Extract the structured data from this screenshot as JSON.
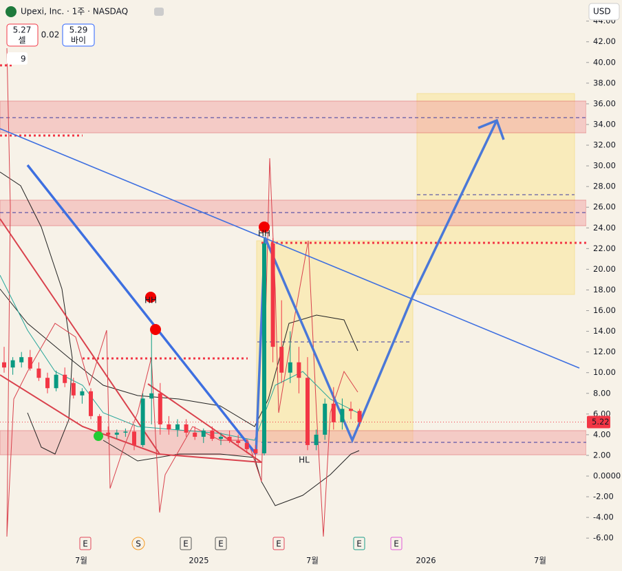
{
  "header": {
    "title": "Upexi, Inc. · 1주 · NASDAQ",
    "sell_price": "5.27",
    "sell_label": "셀",
    "spread": "0.02",
    "buy_price": "5.29",
    "buy_label": "바이",
    "indicator_count": "9",
    "currency": "USD"
  },
  "chart_data": {
    "type": "candlestick",
    "candles": [
      [
        11,
        12.5,
        10,
        10.5
      ],
      [
        10.5,
        11.5,
        9.8,
        11.2
      ],
      [
        11,
        12,
        10.5,
        11.5
      ],
      [
        11.5,
        12.2,
        10.2,
        10.4
      ],
      [
        10.4,
        11,
        9.2,
        9.5
      ],
      [
        9.5,
        10,
        8,
        8.5
      ],
      [
        8.5,
        10.2,
        8.2,
        9.8
      ],
      [
        9.8,
        10.5,
        8.6,
        9
      ],
      [
        9,
        9.5,
        7.5,
        7.8
      ],
      [
        7.8,
        8.5,
        7,
        8.2
      ],
      [
        8.2,
        8.5,
        5.5,
        5.8
      ],
      [
        5.8,
        6,
        3.8,
        4.2
      ],
      [
        4.2,
        4.8,
        3.6,
        4
      ],
      [
        4,
        4.5,
        3.6,
        4.2
      ],
      [
        4.2,
        4.6,
        3.8,
        4.3
      ],
      [
        4.3,
        5,
        2.5,
        3
      ],
      [
        3,
        8,
        2.8,
        7.5
      ],
      [
        7.5,
        14,
        5,
        8
      ],
      [
        8,
        9,
        4,
        5
      ],
      [
        5,
        5.8,
        4,
        4.5
      ],
      [
        4.5,
        5.5,
        3.8,
        5
      ],
      [
        5,
        5.5,
        3.8,
        4.2
      ],
      [
        4.2,
        4.8,
        3.5,
        3.8
      ],
      [
        3.8,
        4.6,
        3.2,
        4.4
      ],
      [
        4.4,
        4.8,
        3.4,
        3.6
      ],
      [
        3.6,
        4.2,
        3,
        3.8
      ],
      [
        3.8,
        4.4,
        3.2,
        3.4
      ],
      [
        3.4,
        4,
        2.8,
        3.2
      ],
      [
        3.2,
        3.6,
        2.2,
        2.6
      ],
      [
        2.6,
        3,
        1.8,
        2.2
      ],
      [
        2.2,
        23,
        2,
        22.5
      ],
      [
        22.5,
        23,
        11,
        12.5
      ],
      [
        12.5,
        17,
        9,
        10
      ],
      [
        10,
        14,
        9,
        11
      ],
      [
        11,
        12.5,
        8,
        9.5
      ],
      [
        9.5,
        11.5,
        2.5,
        3
      ],
      [
        3,
        4.5,
        2.5,
        4
      ],
      [
        4,
        7.5,
        3.5,
        7
      ],
      [
        7,
        8.6,
        4.5,
        5.2
      ],
      [
        5.2,
        7.5,
        4.5,
        6.5
      ],
      [
        6.5,
        7.2,
        5.5,
        6.3
      ],
      [
        6.3,
        6.5,
        4.8,
        5.22
      ]
    ],
    "up_color": "#089981",
    "down_color": "#f23645",
    "last_price": 5.22,
    "last_price_label": "5.22",
    "ylim": [
      -7,
      45
    ],
    "yticks": [
      {
        "value": 44,
        "label": "44.00"
      },
      {
        "value": 42,
        "label": "42.00"
      },
      {
        "value": 40,
        "label": "40.00"
      },
      {
        "value": 38,
        "label": "38.00"
      },
      {
        "value": 36,
        "label": "36.00"
      },
      {
        "value": 34,
        "label": "34.00"
      },
      {
        "value": 32,
        "label": "32.00"
      },
      {
        "value": 30,
        "label": "30.00"
      },
      {
        "value": 28,
        "label": "28.00"
      },
      {
        "value": 26,
        "label": "26.00"
      },
      {
        "value": 24,
        "label": "24.00"
      },
      {
        "value": 22,
        "label": "22.00"
      },
      {
        "value": 20,
        "label": "20.00"
      },
      {
        "value": 18,
        "label": "18.00"
      },
      {
        "value": 16,
        "label": "16.00"
      },
      {
        "value": 14,
        "label": "14.00"
      },
      {
        "value": 12,
        "label": "12.00"
      },
      {
        "value": 10,
        "label": "10.00"
      },
      {
        "value": 8,
        "label": "8.00"
      },
      {
        "value": 6,
        "label": "6.00"
      },
      {
        "value": 4,
        "label": "4.00"
      },
      {
        "value": 2,
        "label": "2.00"
      },
      {
        "value": 0,
        "label": "0.0000"
      },
      {
        "value": -2,
        "label": "-2.00"
      },
      {
        "value": -4,
        "label": "-4.00"
      },
      {
        "value": -6,
        "label": "-6.00"
      }
    ],
    "xlabels": [
      "7월",
      "2025",
      "7월",
      "2026",
      "7월"
    ],
    "annotations": [
      "HH",
      "HH",
      "HL"
    ],
    "events": [
      {
        "label": "E",
        "color": "#e0455a"
      },
      {
        "label": "S",
        "color": "#f59a23"
      },
      {
        "label": "E",
        "color": "#555"
      },
      {
        "label": "E",
        "color": "#555"
      },
      {
        "label": "E",
        "color": "#e0455a"
      },
      {
        "label": "E",
        "color": "#1e9e8a"
      },
      {
        "label": "E",
        "color": "#e05bd8"
      }
    ]
  }
}
